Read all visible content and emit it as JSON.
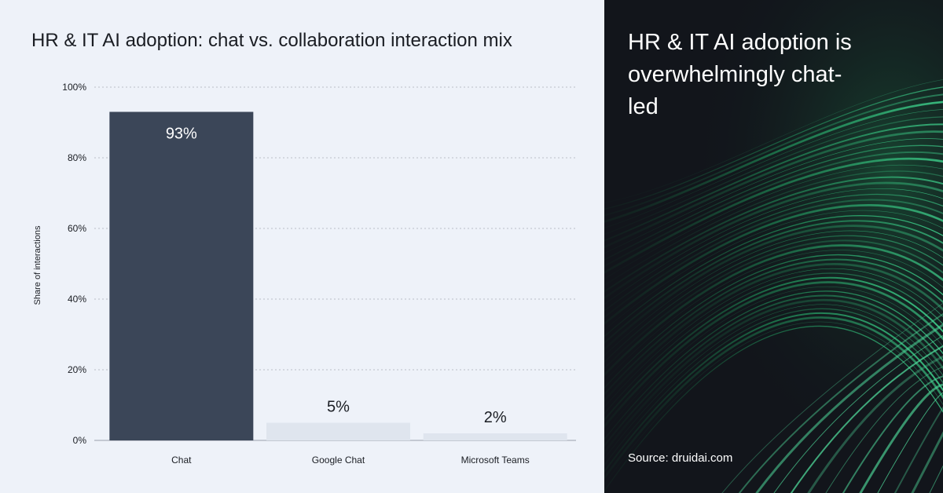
{
  "chart_data": {
    "type": "bar",
    "title": "HR & IT AI adoption: chat vs. collaboration interaction mix",
    "categories": [
      "Chat",
      "Google Chat",
      "Microsoft Teams"
    ],
    "values": [
      93,
      5,
      2
    ],
    "data_labels": [
      "93%",
      "5%",
      "2%"
    ],
    "ylabel": "Share of interactions",
    "ylim": [
      0,
      100
    ],
    "yticks": [
      "0%",
      "20%",
      "40%",
      "60%",
      "80%",
      "100%"
    ],
    "ytick_values": [
      0,
      20,
      40,
      60,
      80,
      100
    ],
    "grid": true,
    "colors": {
      "highlight_bar": "#3b4658",
      "muted_bar": "#dfe5ee",
      "highlight_label": "#ffffff",
      "muted_label": "#1a1d23",
      "grid": "#b9bec8"
    }
  },
  "panel": {
    "headline": "HR & IT AI adoption is overwhelmingly chat-led",
    "source": "Source: druidai.com",
    "background": "#12151b",
    "accent": "#2fb876"
  }
}
